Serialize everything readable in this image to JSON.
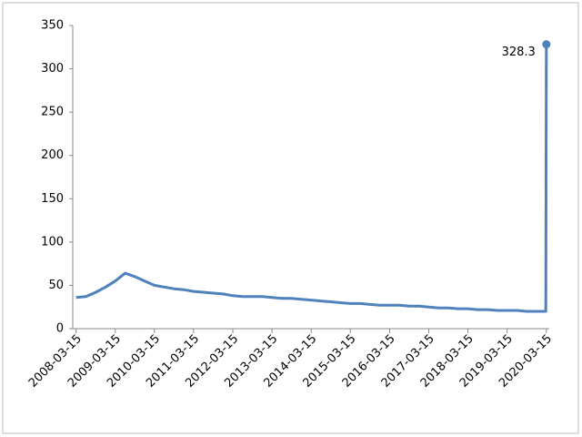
{
  "chart_data": {
    "type": "line",
    "x": [
      "2008-03-15",
      "2008-06-15",
      "2008-09-15",
      "2008-12-15",
      "2009-03-15",
      "2009-06-15",
      "2009-09-15",
      "2009-12-15",
      "2010-03-15",
      "2010-06-15",
      "2010-09-15",
      "2010-12-15",
      "2011-03-15",
      "2011-06-15",
      "2011-09-15",
      "2011-12-15",
      "2012-03-15",
      "2012-06-15",
      "2012-09-15",
      "2012-12-15",
      "2013-03-15",
      "2013-06-15",
      "2013-09-15",
      "2013-12-15",
      "2014-03-15",
      "2014-06-15",
      "2014-09-15",
      "2014-12-15",
      "2015-03-15",
      "2015-06-15",
      "2015-09-15",
      "2015-12-15",
      "2016-03-15",
      "2016-06-15",
      "2016-09-15",
      "2016-12-15",
      "2017-03-15",
      "2017-06-15",
      "2017-09-15",
      "2017-12-15",
      "2018-03-15",
      "2018-06-15",
      "2018-09-15",
      "2018-12-15",
      "2019-03-15",
      "2019-06-15",
      "2019-09-15",
      "2019-12-15",
      "2020-03-10",
      "2020-03-15"
    ],
    "series": [
      {
        "color": "#4f81bd",
        "values": [
          36,
          37,
          42,
          48,
          55,
          64,
          60,
          55,
          50,
          48,
          46,
          45,
          43,
          42,
          41,
          40,
          38,
          37,
          37,
          37,
          36,
          35,
          35,
          34,
          33,
          32,
          31,
          30,
          29,
          29,
          28,
          27,
          27,
          27,
          26,
          26,
          25,
          24,
          24,
          23,
          23,
          22,
          22,
          21,
          21,
          21,
          20,
          20,
          20,
          328.3
        ]
      }
    ],
    "xlim": [
      "2008-03-01",
      "2020-03-25"
    ],
    "xticks": [
      "2008-03-15",
      "2009-03-15",
      "2010-03-15",
      "2011-03-15",
      "2012-03-15",
      "2013-03-15",
      "2014-03-15",
      "2015-03-15",
      "2016-03-15",
      "2017-03-15",
      "2018-03-15",
      "2019-03-15",
      "2020-03-15"
    ],
    "ylim": [
      0,
      350
    ],
    "yticks": [
      0,
      50,
      100,
      150,
      200,
      250,
      300,
      350
    ]
  }
}
